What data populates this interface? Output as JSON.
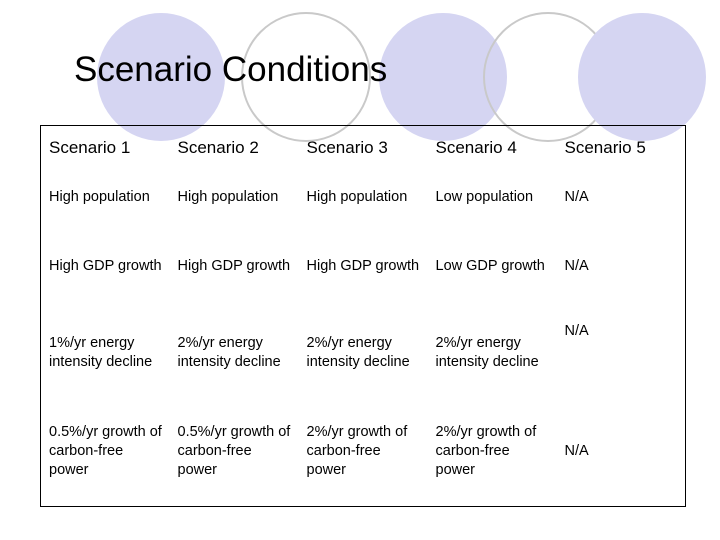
{
  "slide": {
    "title": "Scenario Conditions"
  },
  "theme": {
    "circle_fill": "#d5d5f2",
    "circle_outline": "#c9c9c9"
  },
  "table": {
    "headers": [
      "Scenario 1",
      "Scenario 2",
      "Scenario 3",
      "Scenario 4",
      "Scenario 5"
    ],
    "rows": [
      [
        "High population",
        "High population",
        "High population",
        "Low population",
        "N/A"
      ],
      [
        "High GDP growth",
        "High GDP growth",
        "High GDP growth",
        "Low GDP growth",
        "N/A"
      ],
      [
        "1%/yr energy intensity decline",
        "2%/yr energy intensity decline",
        "2%/yr energy intensity decline",
        "2%/yr energy intensity decline",
        "N/A"
      ],
      [
        "0.5%/yr growth of carbon-free power",
        "0.5%/yr growth of carbon-free power",
        "2%/yr growth of carbon-free power",
        "2%/yr growth of carbon-free power",
        "N/A"
      ]
    ]
  }
}
